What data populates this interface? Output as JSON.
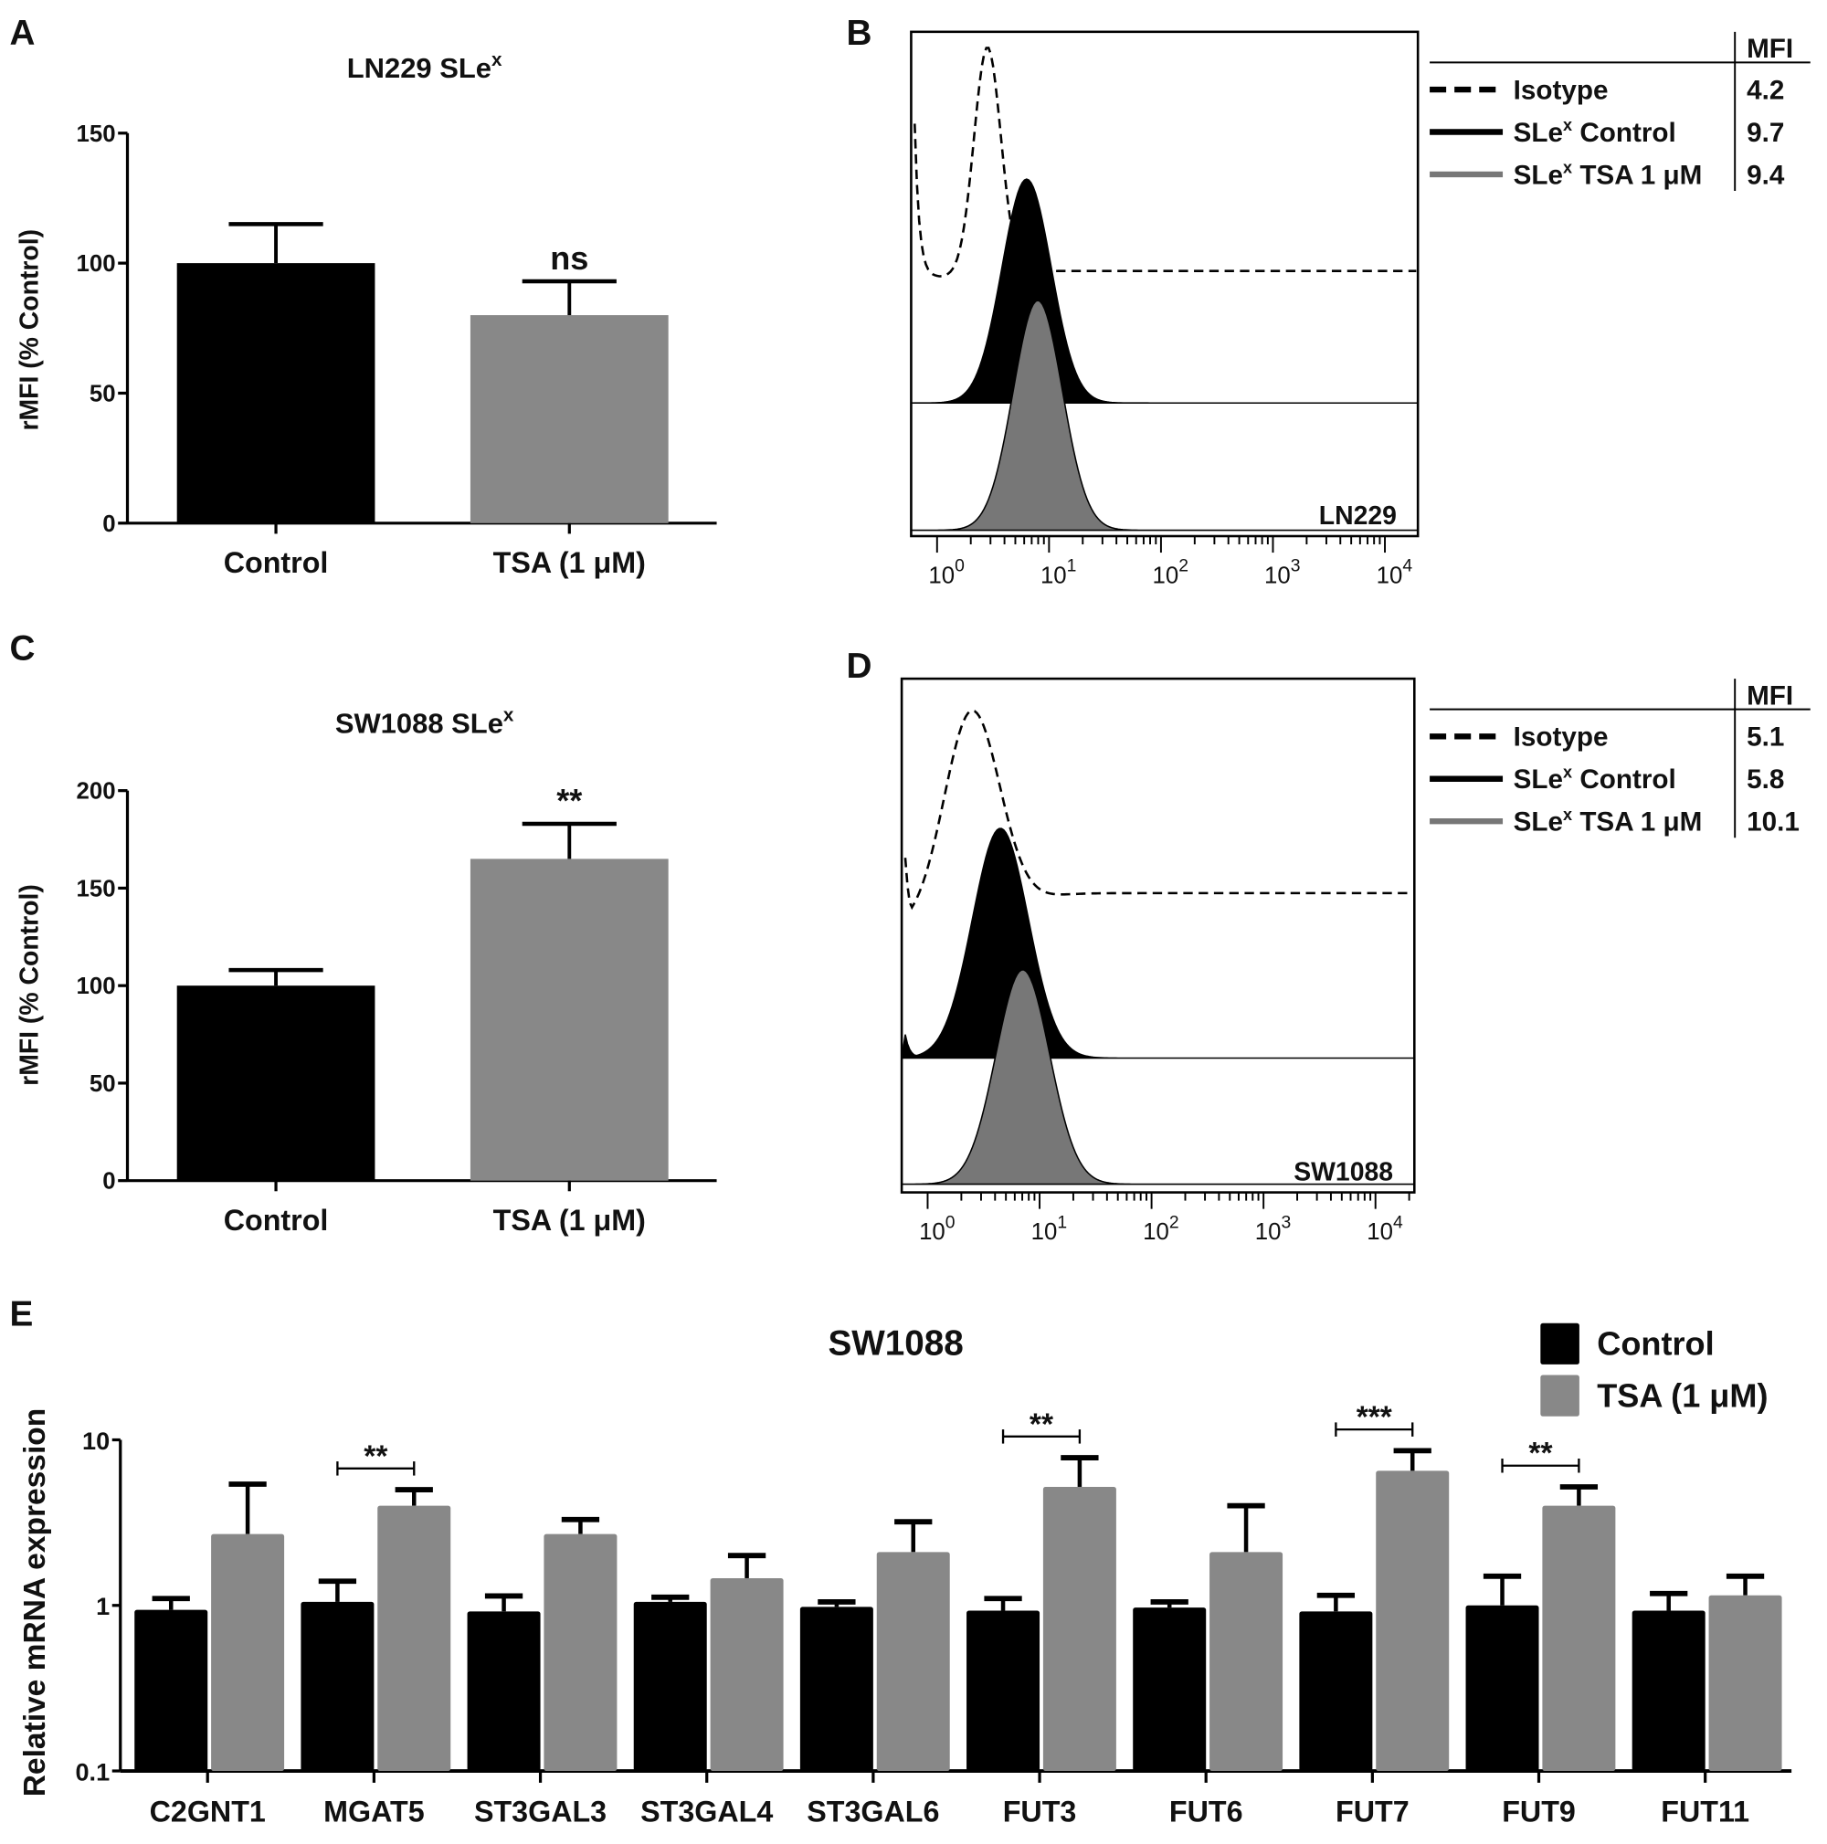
{
  "colors": {
    "control": "#000000",
    "tsa": "#888888",
    "axis": "#000000"
  },
  "panels": {
    "A": {
      "label": "A",
      "title": "LN229 SLe",
      "title_sup": "x"
    },
    "B": {
      "label": "B",
      "cell_line": "LN229"
    },
    "C": {
      "label": "C",
      "title": "SW1088 SLe",
      "title_sup": "x"
    },
    "D": {
      "label": "D",
      "cell_line": "SW1088"
    },
    "E": {
      "label": "E"
    }
  },
  "chart_data": [
    {
      "type": "bar",
      "panel": "A",
      "title": "LN229 SLex",
      "ylabel": "rMFI (% Control)",
      "ylim": [
        0,
        150
      ],
      "yticks": [
        "0",
        "50",
        "100",
        "150"
      ],
      "categories": [
        "Control",
        "TSA (1 μM)"
      ],
      "values": [
        100,
        80
      ],
      "errors_upper": [
        115,
        93
      ],
      "annotations": [
        {
          "category": "TSA (1 μM)",
          "text": "ns"
        }
      ]
    },
    {
      "type": "bar",
      "panel": "C",
      "title": "SW1088 SLex",
      "ylabel": "rMFI (% Control)",
      "ylim": [
        0,
        200
      ],
      "yticks": [
        "0",
        "50",
        "100",
        "150",
        "200"
      ],
      "categories": [
        "Control",
        "TSA (1 μM)"
      ],
      "values": [
        100,
        165
      ],
      "errors_upper": [
        108,
        183
      ],
      "annotations": [
        {
          "category": "TSA (1 μM)",
          "text": "**"
        }
      ]
    },
    {
      "type": "histogram",
      "panel": "B",
      "x_scale": "log",
      "xticks": [
        "0",
        "1",
        "2",
        "3",
        "4"
      ],
      "xtick_base": "10",
      "legend_header": "MFI",
      "series": [
        {
          "name": "Isotype",
          "style": "dashed",
          "mfi": "4.2"
        },
        {
          "name": "SLe",
          "name_sup": "x",
          "name_rest": " Control",
          "style": "black-filled",
          "mfi": "9.7"
        },
        {
          "name": "SLe",
          "name_sup": "x",
          "name_rest": " TSA 1 μM",
          "style": "grey-filled",
          "mfi": "9.4"
        }
      ],
      "label": "LN229"
    },
    {
      "type": "histogram",
      "panel": "D",
      "x_scale": "log",
      "xticks": [
        "0",
        "1",
        "2",
        "3",
        "4"
      ],
      "xtick_base": "10",
      "legend_header": "MFI",
      "series": [
        {
          "name": "Isotype",
          "style": "dashed",
          "mfi": "5.1"
        },
        {
          "name": "SLe",
          "name_sup": "x",
          "name_rest": " Control",
          "style": "black-filled",
          "mfi": "5.8"
        },
        {
          "name": "SLe",
          "name_sup": "x",
          "name_rest": " TSA 1 μM",
          "style": "grey-filled",
          "mfi": "10.1"
        }
      ],
      "label": "SW1088"
    },
    {
      "type": "bar",
      "panel": "E",
      "title": "SW1088",
      "ylabel": "Relative mRNA expression",
      "y_scale": "log",
      "ylim": [
        0.1,
        10
      ],
      "yticks": [
        "0.1",
        "1",
        "10"
      ],
      "legend": "top-right",
      "categories": [
        "C2GNT1",
        "MGAT5",
        "ST3GAL3",
        "ST3GAL4",
        "ST3GAL6",
        "FUT3",
        "FUT6",
        "FUT7",
        "FUT9",
        "FUT11"
      ],
      "series": [
        {
          "name": "Control",
          "values": [
            0.94,
            1.05,
            0.92,
            1.05,
            0.98,
            0.93,
            0.97,
            0.92,
            1.0,
            0.93
          ],
          "errors_upper": [
            1.1,
            1.4,
            1.14,
            1.12,
            1.05,
            1.1,
            1.05,
            1.15,
            1.5,
            1.18
          ]
        },
        {
          "name": "TSA (1 μM)",
          "values": [
            2.7,
            4.0,
            2.7,
            1.46,
            2.1,
            5.2,
            2.1,
            6.5,
            4.0,
            1.15
          ],
          "errors_upper": [
            5.4,
            5.0,
            3.3,
            2.0,
            3.2,
            7.8,
            4.0,
            8.6,
            5.2,
            1.5
          ]
        }
      ],
      "significance": [
        {
          "category": "MGAT5",
          "text": "**"
        },
        {
          "category": "FUT3",
          "text": "**"
        },
        {
          "category": "FUT7",
          "text": "***"
        },
        {
          "category": "FUT9",
          "text": "**"
        }
      ]
    }
  ]
}
